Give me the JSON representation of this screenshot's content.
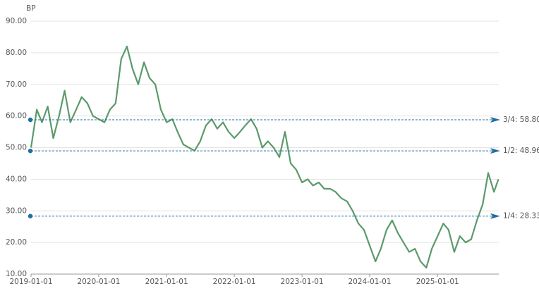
{
  "chart_data": {
    "type": "line",
    "y_label": "BP",
    "x": [
      "2019-01-01",
      "2019-02-01",
      "2019-03-01",
      "2019-04-01",
      "2019-05-01",
      "2019-06-01",
      "2019-07-01",
      "2019-08-01",
      "2019-09-01",
      "2019-10-01",
      "2019-11-01",
      "2019-12-01",
      "2020-01-01",
      "2020-02-01",
      "2020-03-01",
      "2020-04-01",
      "2020-05-01",
      "2020-06-01",
      "2020-07-01",
      "2020-08-01",
      "2020-09-01",
      "2020-10-01",
      "2020-11-01",
      "2020-12-01",
      "2021-01-01",
      "2021-02-01",
      "2021-03-01",
      "2021-04-01",
      "2021-05-01",
      "2021-06-01",
      "2021-07-01",
      "2021-08-01",
      "2021-09-01",
      "2021-10-01",
      "2021-11-01",
      "2021-12-01",
      "2022-01-01",
      "2022-02-01",
      "2022-03-01",
      "2022-04-01",
      "2022-05-01",
      "2022-06-01",
      "2022-07-01",
      "2022-08-01",
      "2022-09-01",
      "2022-10-01",
      "2022-11-01",
      "2022-12-01",
      "2023-01-01",
      "2023-02-01",
      "2023-03-01",
      "2023-04-01",
      "2023-05-01",
      "2023-06-01",
      "2023-07-01",
      "2023-08-01",
      "2023-09-01",
      "2023-10-01",
      "2023-11-01",
      "2023-12-01",
      "2024-01-01",
      "2024-02-01",
      "2024-03-01",
      "2024-04-01",
      "2024-05-01",
      "2024-06-01",
      "2024-07-01",
      "2024-08-01",
      "2024-09-01",
      "2024-10-01",
      "2024-11-01",
      "2024-12-01",
      "2025-01-01",
      "2025-02-01",
      "2025-03-01",
      "2025-04-01",
      "2025-05-01",
      "2025-06-01",
      "2025-07-01",
      "2025-08-01",
      "2025-09-01",
      "2025-10-01",
      "2025-11-01",
      "2025-11-25"
    ],
    "series": [
      {
        "color": "#5b9a6b",
        "values": [
          50,
          62,
          58,
          63,
          53,
          60,
          68,
          58,
          62,
          66,
          64,
          60,
          59,
          58,
          62,
          64,
          78,
          82,
          75,
          70,
          77,
          72,
          70,
          62,
          58,
          59,
          55,
          51,
          50,
          49,
          52,
          57,
          59,
          56,
          58,
          55,
          53,
          55,
          57,
          59,
          56,
          50,
          52,
          50,
          47,
          55,
          45,
          43,
          39,
          40,
          38,
          39,
          37,
          37,
          36,
          34,
          33,
          30,
          26,
          24,
          19,
          14,
          18,
          24,
          27,
          23,
          20,
          17,
          18,
          14,
          12,
          18,
          22,
          26,
          24,
          17,
          22,
          20,
          21,
          27,
          32,
          42,
          36,
          40
        ]
      }
    ],
    "xlim": [
      "2019-01-01",
      "2025-11-27"
    ],
    "xticks": [
      "2019-01-01",
      "2020-01-01",
      "2021-01-01",
      "2022-01-01",
      "2023-01-01",
      "2024-01-01",
      "2025-01-01"
    ],
    "ylim": [
      10,
      90
    ],
    "yticks": [
      {
        "value": 10,
        "label": "10.00"
      },
      {
        "value": 20,
        "label": "20.00"
      },
      {
        "value": 30,
        "label": "30.00"
      },
      {
        "value": 40,
        "label": "40.00"
      },
      {
        "value": 50,
        "label": "50.00"
      },
      {
        "value": 60,
        "label": "60.00"
      },
      {
        "value": 70,
        "label": "70.00"
      },
      {
        "value": 80,
        "label": "80.00"
      },
      {
        "value": 90,
        "label": "90.00"
      }
    ],
    "grid": true,
    "reference_lines": [
      {
        "label": "3/4: 58.80",
        "value": 58.8
      },
      {
        "label": "1/2: 48.96",
        "value": 48.96
      },
      {
        "label": "1/4: 28.33",
        "value": 28.33
      }
    ],
    "reference_color": "#1f6fa0"
  }
}
